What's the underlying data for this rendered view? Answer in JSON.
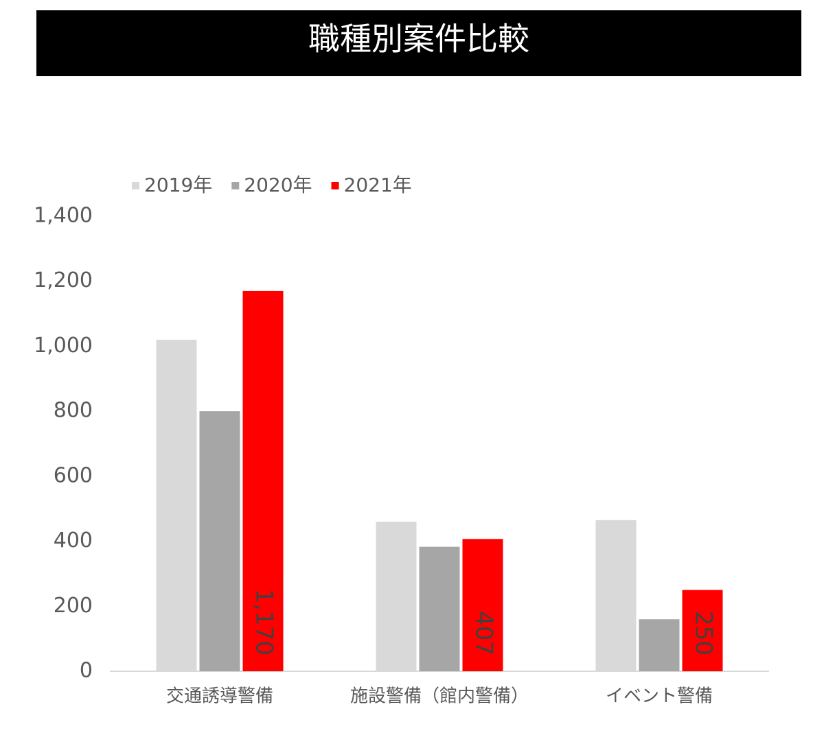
{
  "chart_data": {
    "type": "bar",
    "title": "職種別案件比較",
    "categories": [
      "交通誘導警備",
      "施設警備（館内警備）",
      "イベント警備"
    ],
    "series": [
      {
        "name": "2019年",
        "color": "#d9d9d9",
        "values": [
          1020,
          460,
          465
        ]
      },
      {
        "name": "2020年",
        "color": "#a6a6a6",
        "values": [
          800,
          383,
          160
        ]
      },
      {
        "name": "2021年",
        "color": "#ff0000",
        "values": [
          1170,
          407,
          250
        ],
        "value_labels": [
          "1,170",
          "407",
          "250"
        ]
      }
    ],
    "ylim": [
      0,
      1400
    ],
    "yticks": [
      0,
      200,
      400,
      600,
      800,
      {
        "value": 1000,
        "label": "1,000"
      },
      {
        "value": 1200,
        "label": "1,200"
      },
      {
        "value": 1400,
        "label": "1,400"
      }
    ],
    "grid": false,
    "legend": "top-left"
  }
}
